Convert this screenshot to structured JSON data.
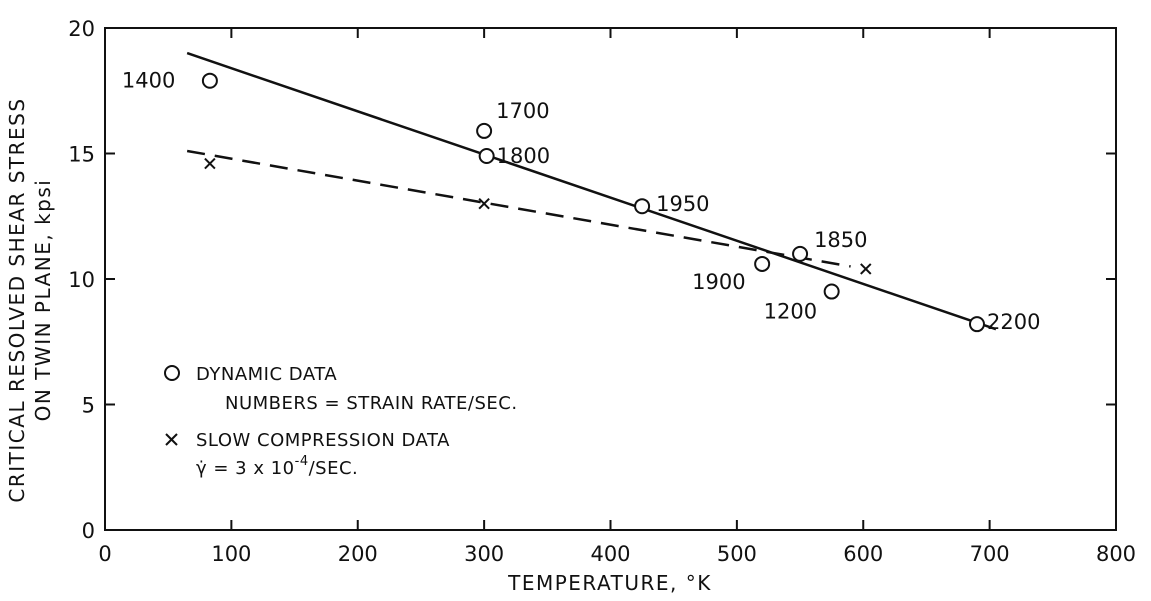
{
  "chart_data": {
    "type": "scatter",
    "xlabel": "TEMPERATURE, °K",
    "ylabel": [
      "CRITICAL RESOLVED SHEAR STRESS",
      "ON TWIN PLANE, kpsi"
    ],
    "xlim": [
      0,
      800
    ],
    "ylim": [
      0,
      20
    ],
    "xticks": [
      "0",
      "100",
      "200",
      "300",
      "400",
      "500",
      "600",
      "700",
      "800"
    ],
    "yticks": [
      "0",
      "5",
      "10",
      "15",
      "20"
    ],
    "grid": false,
    "legend_position": "bottom-left",
    "series": [
      {
        "name": "DYNAMIC DATA",
        "marker": "circle",
        "points": [
          {
            "x": 83,
            "y": 17.9,
            "label": "1400"
          },
          {
            "x": 300,
            "y": 15.9,
            "label": "1700"
          },
          {
            "x": 302,
            "y": 14.9,
            "label": "1800"
          },
          {
            "x": 425,
            "y": 12.9,
            "label": "1950"
          },
          {
            "x": 520,
            "y": 10.6,
            "label": "1900"
          },
          {
            "x": 550,
            "y": 11.0,
            "label": "1850"
          },
          {
            "x": 575,
            "y": 9.5,
            "label": "1200"
          },
          {
            "x": 690,
            "y": 8.2,
            "label": "2200"
          }
        ],
        "fit_line": {
          "style": "solid",
          "x": [
            65,
            705
          ],
          "y": [
            19.0,
            8.0
          ]
        }
      },
      {
        "name": "SLOW COMPRESSION DATA",
        "marker": "x",
        "points": [
          {
            "x": 83,
            "y": 14.6
          },
          {
            "x": 300,
            "y": 13.0
          },
          {
            "x": 602,
            "y": 10.4
          }
        ],
        "fit_line": {
          "style": "dashed",
          "x": [
            65,
            590
          ],
          "y": [
            15.1,
            10.5
          ]
        }
      }
    ],
    "legend": {
      "circle_label": "DYNAMIC DATA",
      "circle_note": "NUMBERS = STRAIN RATE/SEC.",
      "x_label": "SLOW COMPRESSION DATA",
      "x_note_prefix": "γ̇ = 3 x 10",
      "x_note_exp": "-4",
      "x_note_suffix": "/SEC."
    }
  }
}
